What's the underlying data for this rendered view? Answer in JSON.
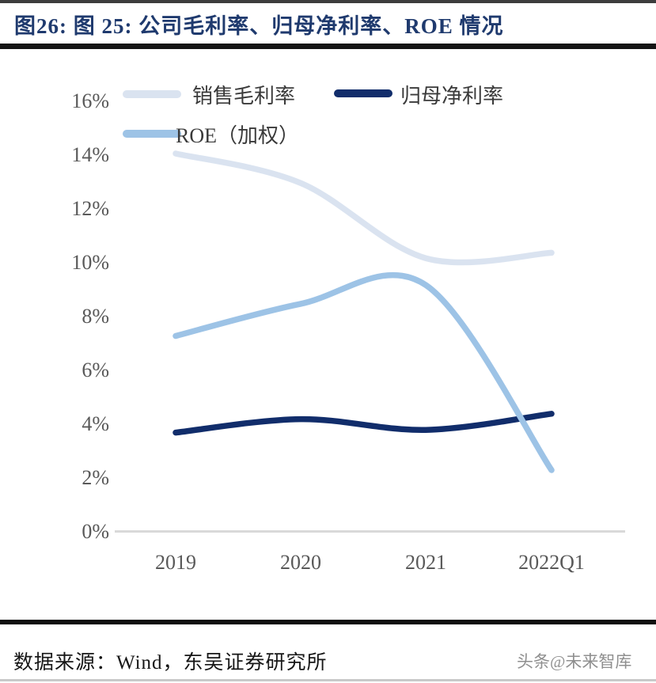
{
  "header": {
    "title": "图26:  图 25:  公司毛利率、归母净利率、ROE 情况"
  },
  "legend": {
    "items": [
      {
        "label": "销售毛利率",
        "color": "#dae3f0"
      },
      {
        "label": "归母净利率",
        "color": "#112d6b"
      },
      {
        "label": "ROE（加权）",
        "color": "#9dc3e6"
      }
    ]
  },
  "chart_data": {
    "type": "line",
    "title": "公司毛利率、归母净利率、ROE 情况",
    "categories": [
      "2019",
      "2020",
      "2021",
      "2022Q1"
    ],
    "series": [
      {
        "name": "销售毛利率",
        "values": [
          14.1,
          13.0,
          10.2,
          10.4
        ],
        "color": "#dae3f0"
      },
      {
        "name": "归母净利率",
        "values": [
          3.7,
          4.2,
          3.8,
          4.4
        ],
        "color": "#112d6b"
      },
      {
        "name": "ROE（加权）",
        "values": [
          7.3,
          8.5,
          9.2,
          2.3
        ],
        "color": "#9dc3e6"
      }
    ],
    "unit": "%",
    "ylim": [
      0,
      16
    ],
    "ytick_step": 2,
    "ytick_labels_desc": [
      "16%",
      "14%",
      "12%",
      "10%",
      "8%",
      "6%",
      "4%",
      "2%",
      "0%"
    ],
    "grid": false,
    "legend_position": "top-left",
    "line_style": "smooth"
  },
  "footer": {
    "source": "数据来源：Wind，东吴证券研究所",
    "watermark": "头条@未来智库"
  }
}
